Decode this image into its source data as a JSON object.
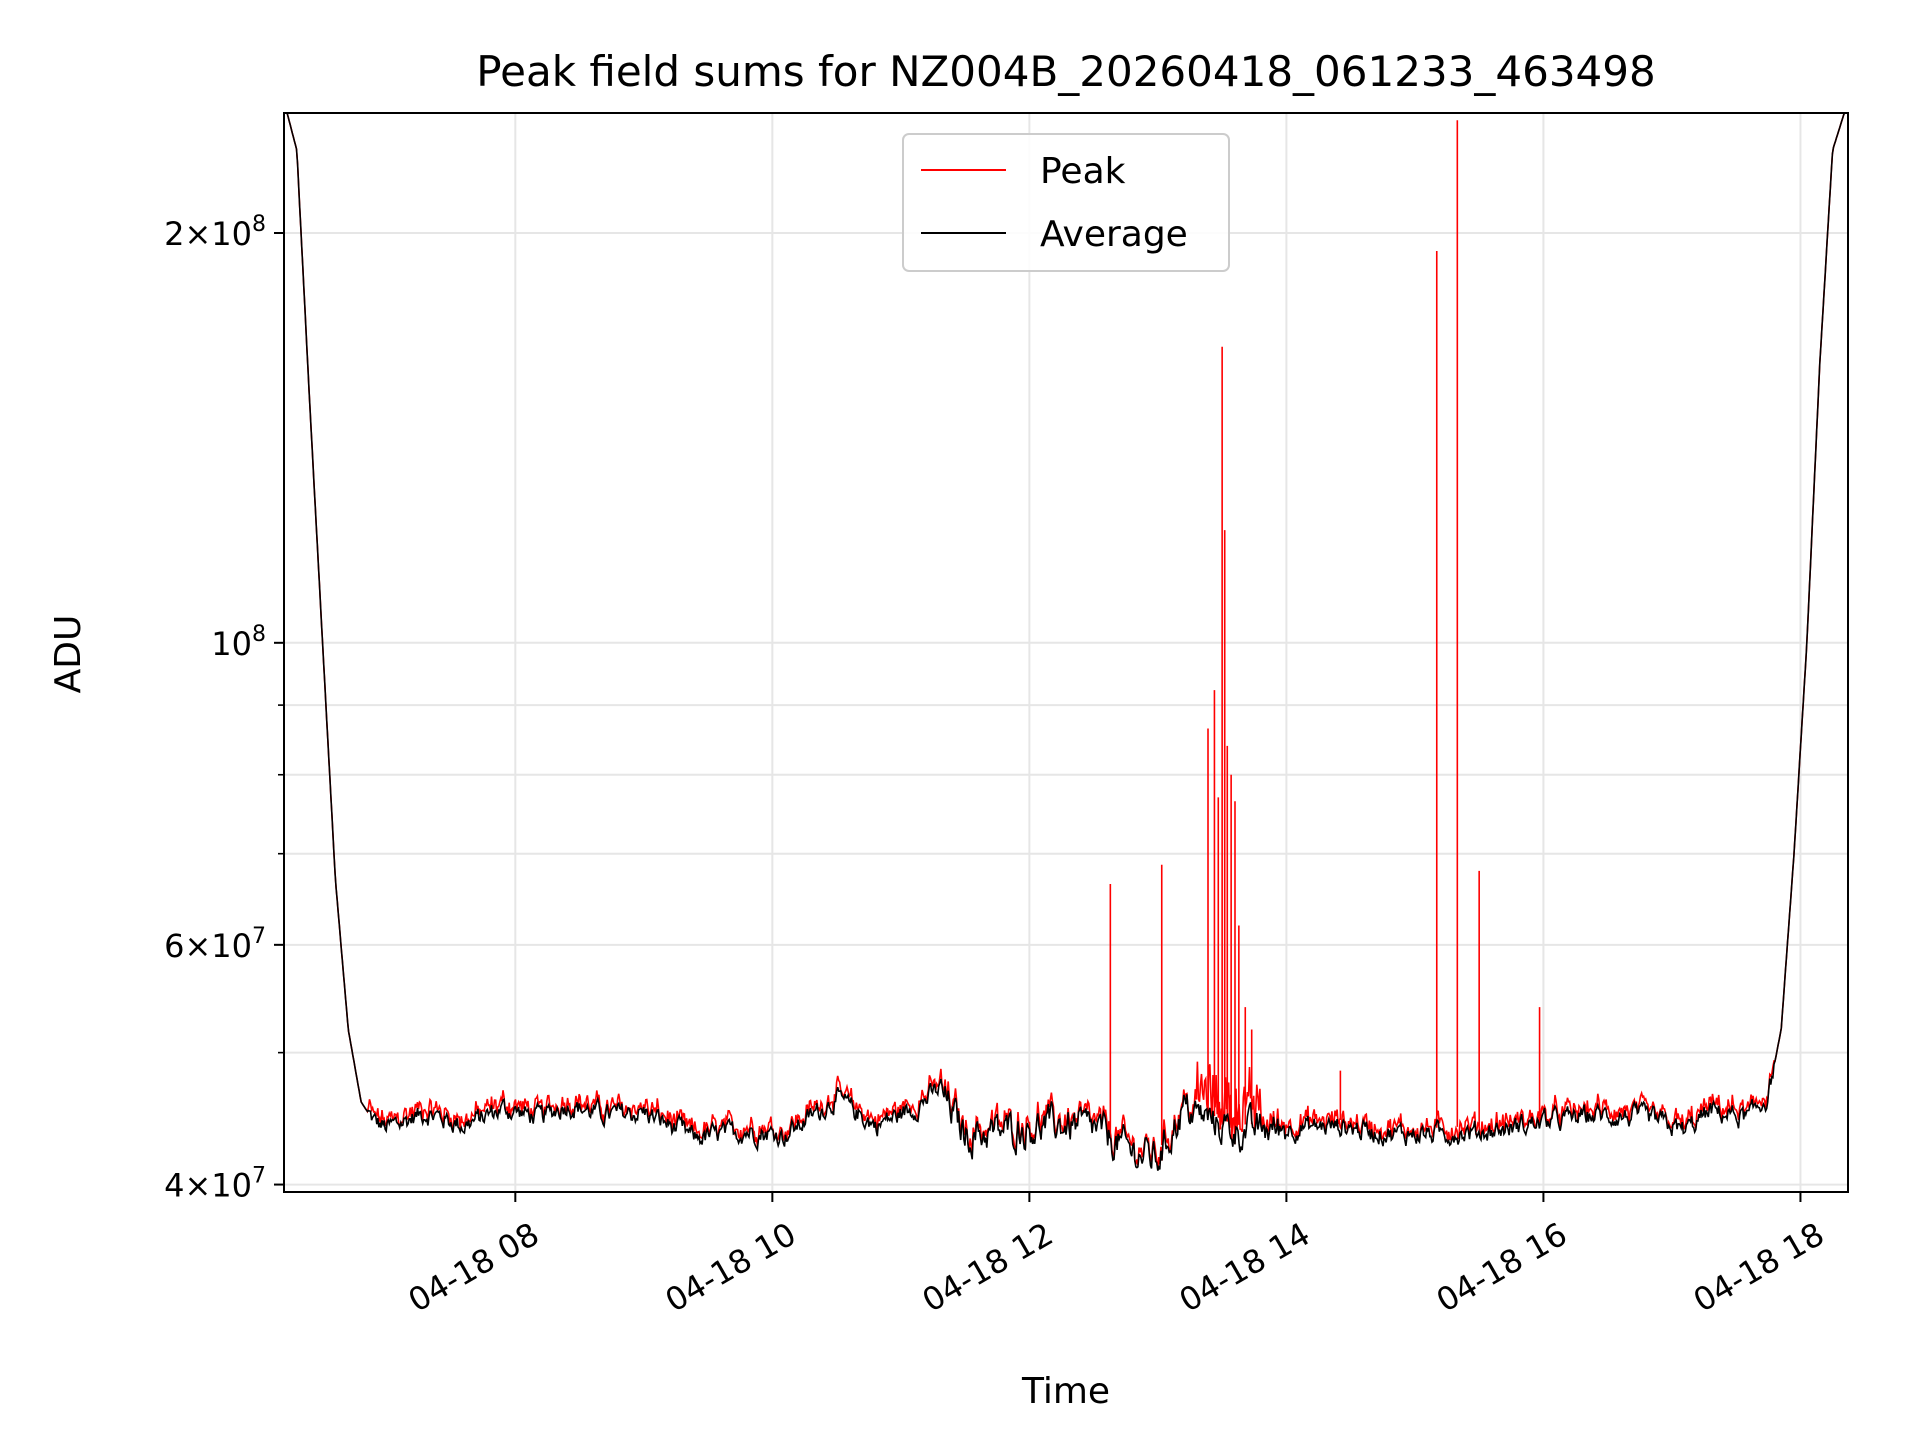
{
  "chart_data": {
    "type": "line",
    "title": "Peak field sums for NZ004B_20260418_061233_463498",
    "xlabel": "Time",
    "ylabel": "ADU",
    "yscale": "log",
    "xlim_hours": [
      6.2,
      18.37
    ],
    "ylim": [
      39500000,
      245000000
    ],
    "x_ticks": [
      {
        "hour": 8,
        "label": "04-18 08"
      },
      {
        "hour": 10,
        "label": "04-18 10"
      },
      {
        "hour": 12,
        "label": "04-18 12"
      },
      {
        "hour": 14,
        "label": "04-18 14"
      },
      {
        "hour": 16,
        "label": "04-18 16"
      },
      {
        "hour": 18,
        "label": "04-18 18"
      }
    ],
    "y_major_ticks": [
      {
        "value": 40000000,
        "mantissa": "4",
        "exponent": "7"
      },
      {
        "value": 60000000,
        "mantissa": "6",
        "exponent": "7"
      },
      {
        "value": 100000000,
        "mantissa": "",
        "exponent": "8"
      },
      {
        "value": 200000000,
        "mantissa": "2",
        "exponent": "8"
      }
    ],
    "y_minor_ticks": [
      50000000,
      70000000,
      80000000,
      90000000
    ],
    "legend": {
      "location": "upper-center",
      "entries": [
        {
          "label": "Peak",
          "color": "#ff0000"
        },
        {
          "label": "Average",
          "color": "#000000"
        }
      ]
    },
    "series": [
      {
        "name": "Average",
        "color": "#000000",
        "description": "smooth envelope of average field sums",
        "points": [
          [
            6.2,
            250000000
          ],
          [
            6.3,
            230000000
          ],
          [
            6.4,
            150000000
          ],
          [
            6.5,
            100000000
          ],
          [
            6.6,
            67000000
          ],
          [
            6.7,
            52000000
          ],
          [
            6.8,
            46000000
          ],
          [
            6.9,
            44500000
          ],
          [
            7.0,
            44000000
          ],
          [
            7.3,
            45200000
          ],
          [
            7.6,
            44200000
          ],
          [
            7.9,
            45500000
          ],
          [
            8.2,
            44800000
          ],
          [
            8.4,
            45800000
          ],
          [
            8.7,
            45000000
          ],
          [
            9.0,
            45200000
          ],
          [
            9.4,
            43300000
          ],
          [
            9.8,
            43800000
          ],
          [
            10.1,
            43500000
          ],
          [
            10.5,
            46300000
          ],
          [
            10.8,
            44200000
          ],
          [
            11.1,
            45500000
          ],
          [
            11.3,
            47000000
          ],
          [
            11.5,
            43500000
          ],
          [
            11.8,
            43800000
          ],
          [
            12.2,
            44300000
          ],
          [
            12.5,
            44000000
          ],
          [
            12.8,
            42300000
          ],
          [
            13.0,
            41800000
          ],
          [
            13.2,
            45500000
          ],
          [
            13.6,
            43800000
          ],
          [
            14.0,
            44000000
          ],
          [
            14.4,
            44200000
          ],
          [
            14.8,
            43600000
          ],
          [
            15.2,
            43600000
          ],
          [
            15.6,
            43800000
          ],
          [
            16.0,
            44500000
          ],
          [
            16.4,
            45000000
          ],
          [
            16.8,
            44800000
          ],
          [
            17.1,
            43800000
          ],
          [
            17.3,
            45300000
          ],
          [
            17.6,
            44800000
          ],
          [
            17.75,
            46500000
          ],
          [
            17.85,
            52000000
          ],
          [
            17.95,
            70000000
          ],
          [
            18.05,
            100000000
          ],
          [
            18.15,
            160000000
          ],
          [
            18.25,
            230000000
          ],
          [
            18.37,
            250000000
          ]
        ]
      },
      {
        "name": "Peak",
        "color": "#ff0000",
        "description": "follows average with narrow spikes",
        "spikes": [
          {
            "hour": 12.63,
            "value": 66500000
          },
          {
            "hour": 13.03,
            "value": 68700000
          },
          {
            "hour": 13.39,
            "value": 86500000
          },
          {
            "hour": 13.44,
            "value": 92300000
          },
          {
            "hour": 13.47,
            "value": 77000000
          },
          {
            "hour": 13.5,
            "value": 165000000
          },
          {
            "hour": 13.52,
            "value": 121000000
          },
          {
            "hour": 13.54,
            "value": 84000000
          },
          {
            "hour": 13.57,
            "value": 80000000
          },
          {
            "hour": 13.6,
            "value": 76500000
          },
          {
            "hour": 13.63,
            "value": 62000000
          },
          {
            "hour": 13.68,
            "value": 54000000
          },
          {
            "hour": 13.73,
            "value": 52000000
          },
          {
            "hour": 14.42,
            "value": 48500000
          },
          {
            "hour": 15.17,
            "value": 194000000
          },
          {
            "hour": 15.33,
            "value": 242000000
          },
          {
            "hour": 15.5,
            "value": 68000000
          },
          {
            "hour": 15.97,
            "value": 54000000
          }
        ]
      }
    ]
  }
}
